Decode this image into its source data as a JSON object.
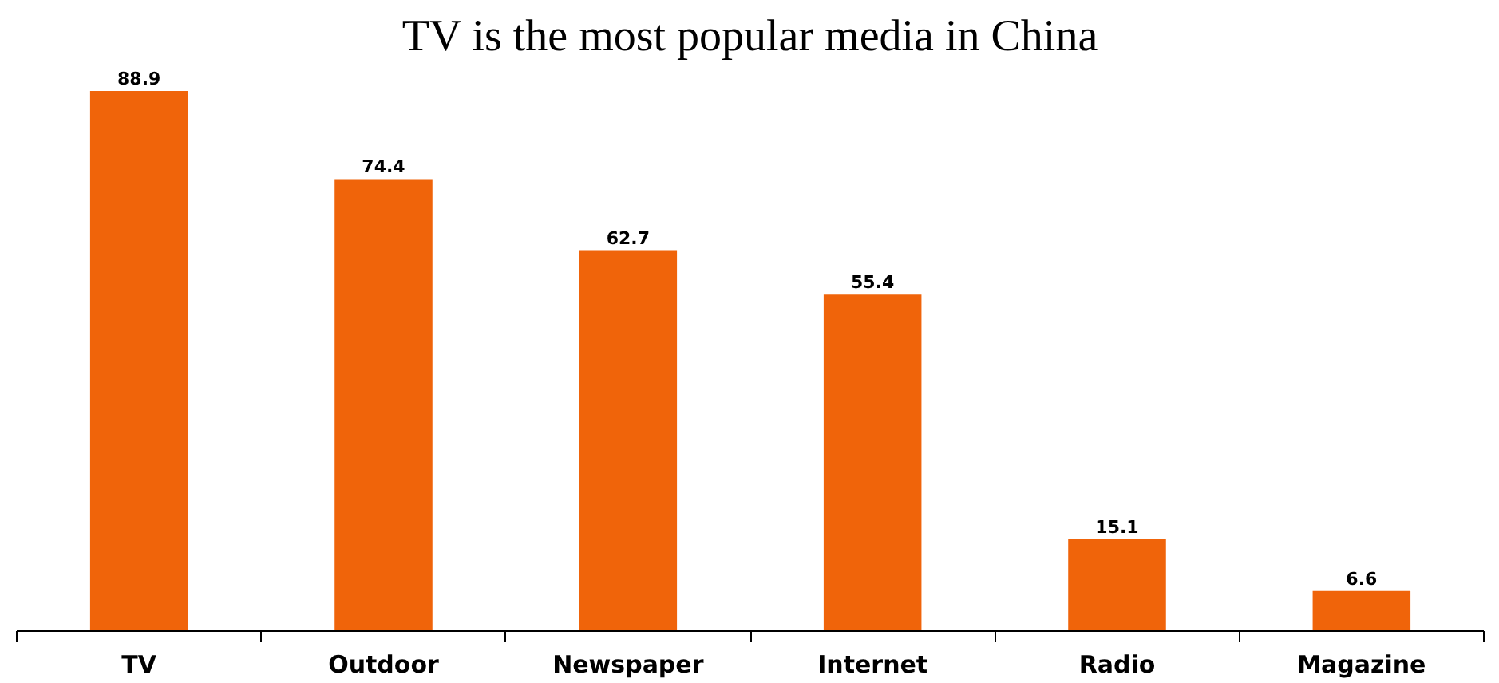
{
  "chart_data": {
    "type": "bar",
    "title": "TV is the most popular media in China",
    "categories": [
      "TV",
      "Outdoor",
      "Newspaper",
      "Internet",
      "Radio",
      "Magazine"
    ],
    "values": [
      88.9,
      74.4,
      62.7,
      55.4,
      15.1,
      6.6
    ],
    "color": "#f0640a",
    "data_labels": true,
    "grid": false
  }
}
